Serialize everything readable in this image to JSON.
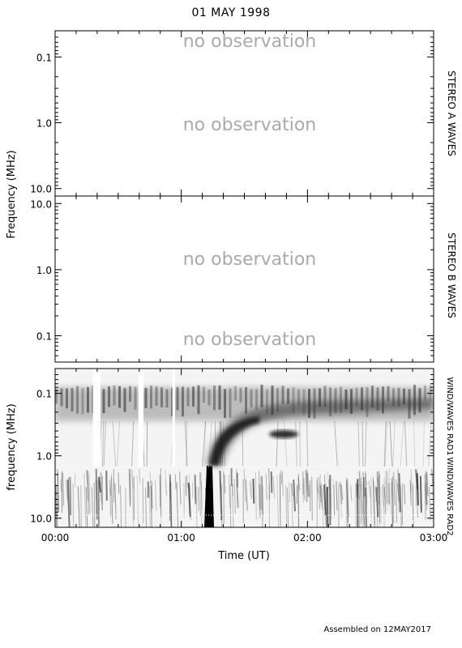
{
  "title": "01 MAY 1998",
  "footer": "Assembled on 12MAY2017",
  "colors": {
    "frame": "#000000",
    "no_observation_text": "#aaaaaa",
    "spectrogram_background": "#f2f2f2",
    "spectrogram_dark": "#000000"
  },
  "chart_data": [
    {
      "type": "heatmap",
      "panel": "STEREO A WAVES",
      "right_label": "STEREO A WAVES",
      "ylabel": "",
      "yscale": "log",
      "yaxis_inverted": true,
      "ylim": [
        0.04,
        13
      ],
      "yticks": [
        {
          "value": 0.1,
          "label": "0.1"
        },
        {
          "value": 1.0,
          "label": "1.0"
        },
        {
          "value": 10.0,
          "label": "10.0"
        }
      ],
      "xlim_hours": [
        0,
        3
      ],
      "status_text": [
        {
          "label": "no observation",
          "freq_mhz": 0.07
        },
        {
          "label": "no observation",
          "freq_mhz": 1.3
        }
      ]
    },
    {
      "type": "heatmap",
      "panel": "STEREO B WAVES",
      "right_label": "STEREO B WAVES",
      "ylabel": "",
      "yscale": "log",
      "yaxis_inverted": false,
      "ylim": [
        0.04,
        13
      ],
      "yticks": [
        {
          "value": 10.0,
          "label": "10.0"
        },
        {
          "value": 1.0,
          "label": "1.0"
        },
        {
          "value": 0.1,
          "label": "0.1"
        }
      ],
      "xlim_hours": [
        0,
        3
      ],
      "status_text": [
        {
          "label": "no observation",
          "freq_mhz": 0.85
        },
        {
          "label": "no observation",
          "freq_mhz": 0.08
        }
      ]
    },
    {
      "type": "heatmap",
      "panel": "WIND/WAVES",
      "right_labels": [
        "WIND/WAVES RAD1",
        "WIND/WAVES RAD2"
      ],
      "ylabel": "frequency (MHz)",
      "xlabel": "Time (UT)",
      "yscale": "log",
      "yaxis_inverted": true,
      "ylim": [
        0.04,
        14
      ],
      "rad_boundary_mhz": 1.0,
      "yticks": [
        {
          "value": 0.1,
          "label": "0.1"
        },
        {
          "value": 1.0,
          "label": "1.0"
        },
        {
          "value": 10.0,
          "label": "10.0"
        }
      ],
      "xlim_hours": [
        0,
        3
      ],
      "xticks": [
        {
          "value": 0,
          "label": "00:00"
        },
        {
          "value": 1,
          "label": "01:00"
        },
        {
          "value": 2,
          "label": "02:00"
        },
        {
          "value": 3,
          "label": "03:00"
        }
      ],
      "features": {
        "type_iii_burst": {
          "start_hours": 1.22,
          "end_hours": 1.3,
          "freq_range_mhz": [
            0.1,
            14
          ]
        },
        "type_ii_drift": {
          "start_hours": 1.3,
          "end_hours": 3.0,
          "freq_start_mhz": 0.3,
          "freq_end_mhz": 0.1
        },
        "blob": {
          "time_hours": 1.72,
          "freq_mhz": 0.3
        },
        "data_gaps_hours": [
          [
            0.3,
            0.36
          ],
          [
            0.66,
            0.7
          ],
          [
            0.93,
            0.95
          ]
        ]
      }
    }
  ],
  "shared_ylabel": "Frequency (MHz)"
}
